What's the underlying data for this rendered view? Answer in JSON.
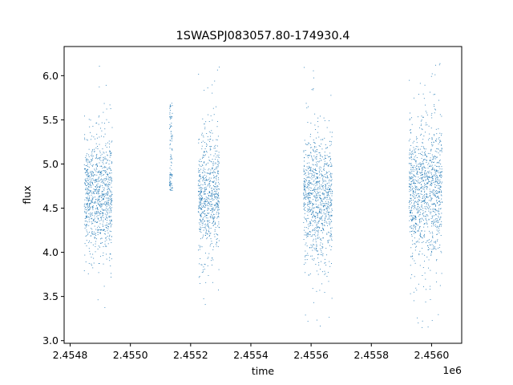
{
  "chart_data": {
    "type": "scatter",
    "title": "1SWASPJ083057.80-174930.4",
    "xlabel": "time",
    "ylabel": "flux",
    "x_offset_label": "1e6",
    "x_scale": 1000000,
    "xlim": [
      2.45478,
      2.4561
    ],
    "ylim": [
      2.97,
      6.33
    ],
    "grid": false,
    "legend": "none",
    "color": "#1f77b4",
    "x_ticks": [
      2.4548,
      2.455,
      2.4552,
      2.4554,
      2.4556,
      2.4558,
      2.456
    ],
    "x_tick_labels": [
      "2.4548",
      "2.4550",
      "2.4552",
      "2.4554",
      "2.4556",
      "2.4558",
      "2.4560"
    ],
    "y_ticks": [
      3.0,
      3.5,
      4.0,
      4.5,
      5.0,
      5.5,
      6.0
    ],
    "y_tick_labels": [
      "3.0",
      "3.5",
      "4.0",
      "4.5",
      "5.0",
      "5.5",
      "6.0"
    ],
    "series": [
      {
        "segments": [
          {
            "x_start": 2454847,
            "x_end": 2454940,
            "median": 4.65,
            "spread": 0.32,
            "min": 3.1,
            "max": 6.2
          },
          {
            "x_start": 2455130,
            "x_end": 2455140,
            "median": 5.0,
            "spread": 0.5,
            "min": 4.7,
            "max": 5.7
          },
          {
            "x_start": 2455225,
            "x_end": 2455295,
            "median": 4.65,
            "spread": 0.33,
            "min": 3.2,
            "max": 6.1
          },
          {
            "x_start": 2455575,
            "x_end": 2455670,
            "median": 4.62,
            "spread": 0.35,
            "min": 3.1,
            "max": 6.15
          },
          {
            "x_start": 2455925,
            "x_end": 2456035,
            "median": 4.68,
            "spread": 0.38,
            "min": 3.1,
            "max": 6.15
          }
        ]
      }
    ]
  }
}
